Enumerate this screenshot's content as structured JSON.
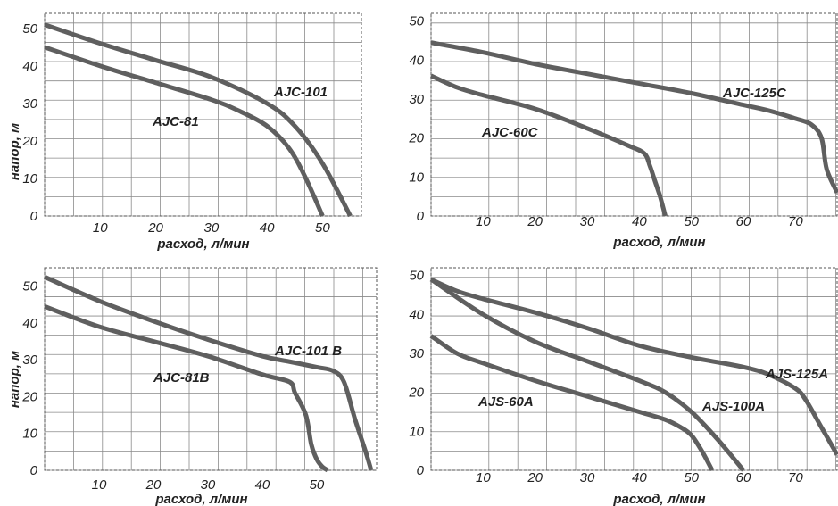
{
  "chart_data": [
    {
      "type": "line",
      "xlabel": "расход, л/мин",
      "ylabel": "напор, м",
      "x_ticks": [
        "10",
        "20",
        "30",
        "40",
        "50"
      ],
      "y_ticks": [
        "0",
        "10",
        "20",
        "30",
        "40",
        "50"
      ],
      "xlim": [
        0,
        57
      ],
      "ylim": [
        0,
        54
      ],
      "grid": true,
      "series": [
        {
          "name": "AJC-101",
          "x": [
            0,
            10,
            20,
            30,
            40,
            45,
            50,
            55
          ],
          "y": [
            51,
            46,
            41.5,
            37,
            30,
            24,
            14,
            0
          ]
        },
        {
          "name": "AJC-81",
          "x": [
            0,
            10,
            20,
            30,
            35,
            40,
            44,
            47,
            50
          ],
          "y": [
            45,
            40,
            35.5,
            31,
            28,
            24,
            18,
            10,
            0
          ]
        }
      ]
    },
    {
      "type": "line",
      "xlabel": "расход, л/мин",
      "ylabel": "",
      "x_ticks": [
        "10",
        "20",
        "30",
        "40",
        "50",
        "60",
        "70"
      ],
      "y_ticks": [
        "0",
        "10",
        "20",
        "30",
        "40",
        "50"
      ],
      "xlim": [
        0,
        78
      ],
      "ylim": [
        0,
        52
      ],
      "grid": true,
      "series": [
        {
          "name": "AJC-125C",
          "x": [
            0,
            10,
            20,
            30,
            40,
            50,
            60,
            65,
            70,
            73,
            75,
            76,
            78
          ],
          "y": [
            44.5,
            42,
            39,
            36.5,
            34,
            31.5,
            28.5,
            27,
            25,
            23.5,
            20,
            12,
            6
          ]
        },
        {
          "name": "AJC-60C",
          "x": [
            0,
            5,
            10,
            20,
            30,
            38,
            41,
            42,
            43,
            44,
            45
          ],
          "y": [
            36,
            33,
            31,
            27.5,
            22.5,
            18,
            16,
            13,
            9,
            5,
            0
          ]
        }
      ]
    },
    {
      "type": "line",
      "xlabel": "расход, л/мин",
      "ylabel": "напор, м",
      "x_ticks": [
        "10",
        "20",
        "30",
        "40",
        "50"
      ],
      "y_ticks": [
        "0",
        "10",
        "20",
        "30",
        "40",
        "50"
      ],
      "xlim": [
        0,
        61
      ],
      "ylim": [
        0,
        55
      ],
      "grid": true,
      "series": [
        {
          "name": "AJC-101 B",
          "x": [
            0,
            10,
            20,
            30,
            40,
            45,
            50,
            53,
            55,
            57,
            59,
            60
          ],
          "y": [
            52.5,
            46,
            40.5,
            35.5,
            31,
            29.5,
            28,
            27,
            24,
            14,
            5,
            0
          ]
        },
        {
          "name": "AJC-81B",
          "x": [
            0,
            10,
            20,
            30,
            40,
            45,
            46,
            48,
            49,
            50,
            51,
            52
          ],
          "y": [
            44.5,
            39,
            35,
            31,
            26,
            24,
            21,
            15,
            7,
            3,
            1,
            0
          ]
        }
      ]
    },
    {
      "type": "line",
      "xlabel": "расход, л/мин",
      "ylabel": "",
      "x_ticks": [
        "10",
        "20",
        "30",
        "40",
        "50",
        "60",
        "70"
      ],
      "y_ticks": [
        "0",
        "10",
        "20",
        "30",
        "40",
        "50"
      ],
      "xlim": [
        0,
        78
      ],
      "ylim": [
        0,
        52
      ],
      "grid": true,
      "series": [
        {
          "name": "AJS-125A",
          "x": [
            0,
            5,
            10,
            20,
            30,
            40,
            50,
            60,
            65,
            70,
            72,
            75,
            78
          ],
          "y": [
            49,
            46,
            44,
            40.5,
            36.5,
            32,
            29,
            26.5,
            24.5,
            21,
            18,
            11,
            4
          ]
        },
        {
          "name": "AJS-100A",
          "x": [
            0,
            10,
            20,
            30,
            40,
            45,
            50,
            55,
            60
          ],
          "y": [
            49,
            40,
            33,
            28,
            23,
            20,
            15,
            8,
            0
          ]
        },
        {
          "name": "AJS-60A",
          "x": [
            0,
            5,
            10,
            20,
            30,
            40,
            45,
            48,
            50,
            52,
            54
          ],
          "y": [
            34.5,
            30,
            27.5,
            23,
            19,
            15,
            13,
            11,
            9,
            5,
            0
          ]
        }
      ]
    }
  ]
}
